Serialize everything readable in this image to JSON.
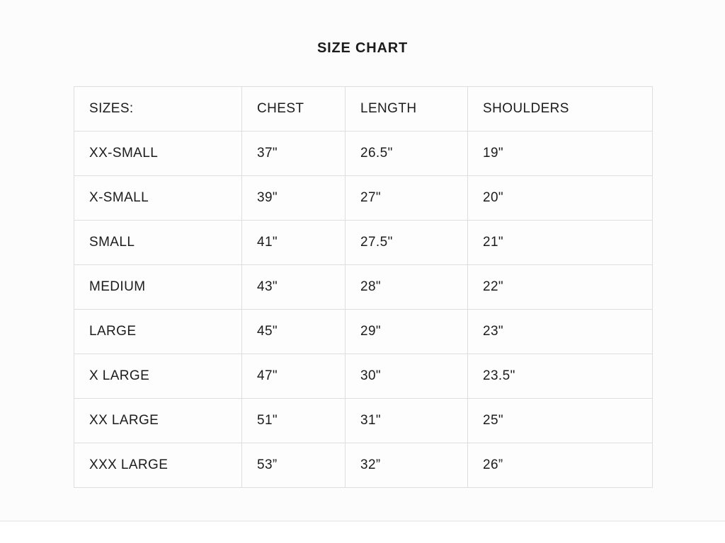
{
  "title": "SIZE CHART",
  "chart_data": {
    "type": "table",
    "title": "SIZE CHART",
    "columns": [
      "SIZES:",
      "CHEST",
      "LENGTH",
      "SHOULDERS"
    ],
    "rows": [
      [
        "XX-SMALL",
        "37\"",
        "26.5\"",
        "19\""
      ],
      [
        "X-SMALL",
        "39\"",
        "27\"",
        "20\""
      ],
      [
        "SMALL",
        "41\"",
        "27.5\"",
        "21\""
      ],
      [
        "MEDIUM",
        "43\"",
        "28\"",
        "22\""
      ],
      [
        "LARGE",
        "45\"",
        "29\"",
        "23\""
      ],
      [
        "X LARGE",
        "47\"",
        "30\"",
        "23.5\""
      ],
      [
        "XX LARGE",
        "51\"",
        "31\"",
        "25\""
      ],
      [
        "XXX LARGE",
        "53”",
        "32”",
        "26”"
      ]
    ]
  },
  "colors": {
    "text": "#1c1c1c",
    "border": "#dfdede",
    "background": "#fdfcfc",
    "divider": "#f1eff0"
  }
}
